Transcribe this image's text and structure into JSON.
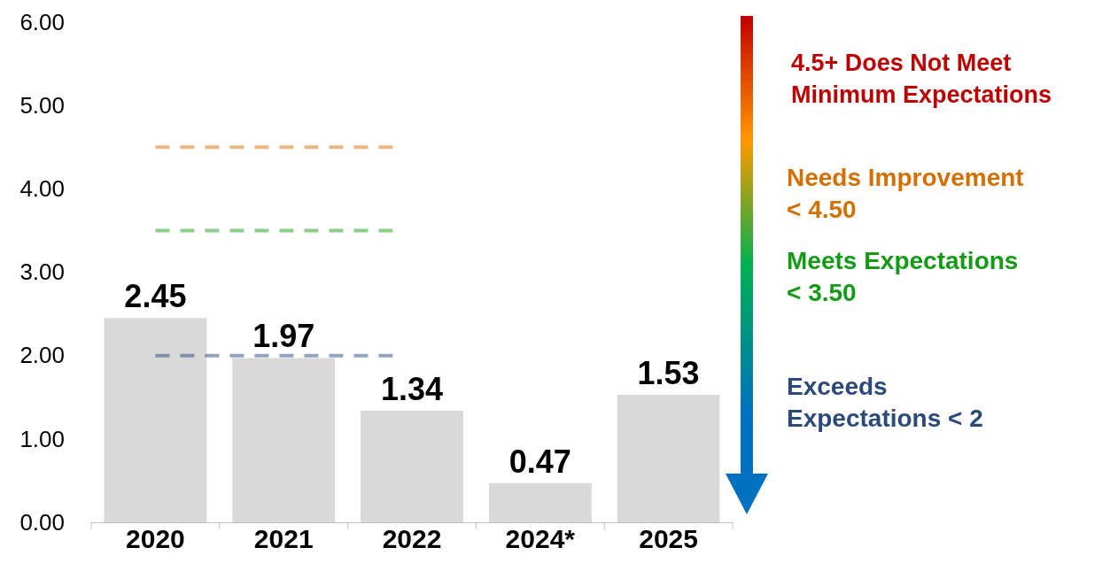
{
  "chart_data": {
    "type": "bar",
    "categories": [
      "2020",
      "2021",
      "2022",
      "2024*",
      "2025"
    ],
    "values": [
      2.45,
      1.97,
      1.34,
      0.47,
      1.53
    ],
    "color": "#d9d9d9",
    "ylim": [
      0,
      6
    ],
    "yticks": [
      {
        "value": 0,
        "label": "0.00"
      },
      {
        "value": 1,
        "label": "1.00"
      },
      {
        "value": 2,
        "label": "2.00"
      },
      {
        "value": 3,
        "label": "3.00"
      },
      {
        "value": 4,
        "label": "4.00"
      },
      {
        "value": 5,
        "label": "5.00"
      },
      {
        "value": 6,
        "label": "6.00"
      }
    ],
    "data_labels": true,
    "grid": false,
    "ref_lines": [
      {
        "axis": "y",
        "value": 4.5,
        "label": "Needs Improvement < 4.50",
        "color": "#d46f00",
        "line_style": "dashed"
      },
      {
        "axis": "y",
        "value": 3.5,
        "label": "Meets Expectations < 3.50",
        "color": "#139c13",
        "line_style": "dashed"
      },
      {
        "axis": "y",
        "value": 2,
        "label": "Exceeds Expectations < 2",
        "color": "#2a4a7c",
        "line_style": "dashed"
      }
    ],
    "annotations": [
      "4.5+ Does Not Meet Minimum Expectations"
    ]
  }
}
